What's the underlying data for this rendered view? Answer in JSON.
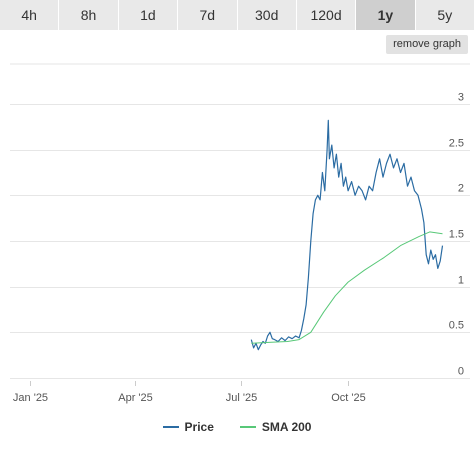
{
  "tabs": [
    {
      "label": "4h"
    },
    {
      "label": "8h"
    },
    {
      "label": "1d"
    },
    {
      "label": "7d"
    },
    {
      "label": "30d"
    },
    {
      "label": "120d"
    },
    {
      "label": "1y"
    },
    {
      "label": "5y"
    }
  ],
  "active_tab": "1y",
  "remove_graph_label": "remove graph",
  "colors": {
    "price": "#2b6ca3",
    "sma": "#58c878",
    "grid": "#e6e6e6",
    "tab_bg": "#e9e9e9",
    "tab_active_bg": "#cfcfcf"
  },
  "legend": [
    {
      "name": "Price",
      "color": "#2b6ca3"
    },
    {
      "name": "SMA 200",
      "color": "#58c878"
    }
  ],
  "chart_data": {
    "type": "line",
    "title": "",
    "xlabel": "",
    "ylabel": "",
    "ylim": [
      0,
      3
    ],
    "xlim": [
      "2024-12-15",
      "2025-12-24"
    ],
    "y_ticks": [
      "0",
      "0.5",
      "1",
      "1.5",
      "2",
      "2.5",
      "3"
    ],
    "x_ticks": [
      {
        "label": "Jan '25",
        "date": "2025-01-01"
      },
      {
        "label": "Apr '25",
        "date": "2025-04-01"
      },
      {
        "label": "Jul '25",
        "date": "2025-07-01"
      },
      {
        "label": "Oct '25",
        "date": "2025-10-01"
      }
    ],
    "grid": true,
    "legend_position": "bottom",
    "series": [
      {
        "name": "Price",
        "color": "#2b6ca3",
        "points": [
          [
            "2025-07-10",
            0.42
          ],
          [
            "2025-07-12",
            0.33
          ],
          [
            "2025-07-14",
            0.38
          ],
          [
            "2025-07-16",
            0.31
          ],
          [
            "2025-07-18",
            0.36
          ],
          [
            "2025-07-20",
            0.4
          ],
          [
            "2025-07-22",
            0.38
          ],
          [
            "2025-07-24",
            0.46
          ],
          [
            "2025-07-26",
            0.5
          ],
          [
            "2025-07-28",
            0.43
          ],
          [
            "2025-07-30",
            0.42
          ],
          [
            "2025-08-02",
            0.4
          ],
          [
            "2025-08-05",
            0.44
          ],
          [
            "2025-08-08",
            0.41
          ],
          [
            "2025-08-11",
            0.45
          ],
          [
            "2025-08-14",
            0.43
          ],
          [
            "2025-08-17",
            0.46
          ],
          [
            "2025-08-20",
            0.44
          ],
          [
            "2025-08-22",
            0.52
          ],
          [
            "2025-08-24",
            0.65
          ],
          [
            "2025-08-26",
            0.8
          ],
          [
            "2025-08-28",
            1.1
          ],
          [
            "2025-08-30",
            1.5
          ],
          [
            "2025-09-01",
            1.8
          ],
          [
            "2025-09-03",
            1.95
          ],
          [
            "2025-09-05",
            2.0
          ],
          [
            "2025-09-07",
            1.95
          ],
          [
            "2025-09-09",
            2.25
          ],
          [
            "2025-09-11",
            2.05
          ],
          [
            "2025-09-13",
            2.5
          ],
          [
            "2025-09-14",
            2.82
          ],
          [
            "2025-09-15",
            2.4
          ],
          [
            "2025-09-17",
            2.55
          ],
          [
            "2025-09-19",
            2.3
          ],
          [
            "2025-09-21",
            2.45
          ],
          [
            "2025-09-23",
            2.2
          ],
          [
            "2025-09-25",
            2.35
          ],
          [
            "2025-09-27",
            2.1
          ],
          [
            "2025-09-29",
            2.2
          ],
          [
            "2025-10-01",
            2.05
          ],
          [
            "2025-10-04",
            2.15
          ],
          [
            "2025-10-07",
            2.0
          ],
          [
            "2025-10-10",
            2.1
          ],
          [
            "2025-10-13",
            2.05
          ],
          [
            "2025-10-16",
            1.95
          ],
          [
            "2025-10-19",
            2.1
          ],
          [
            "2025-10-22",
            2.05
          ],
          [
            "2025-10-25",
            2.25
          ],
          [
            "2025-10-28",
            2.4
          ],
          [
            "2025-10-31",
            2.2
          ],
          [
            "2025-11-03",
            2.35
          ],
          [
            "2025-11-06",
            2.45
          ],
          [
            "2025-11-09",
            2.3
          ],
          [
            "2025-11-12",
            2.4
          ],
          [
            "2025-11-15",
            2.25
          ],
          [
            "2025-11-18",
            2.35
          ],
          [
            "2025-11-21",
            2.1
          ],
          [
            "2025-11-24",
            2.2
          ],
          [
            "2025-11-27",
            2.05
          ],
          [
            "2025-11-30",
            2.0
          ],
          [
            "2025-12-03",
            1.85
          ],
          [
            "2025-12-05",
            1.7
          ],
          [
            "2025-12-07",
            1.35
          ],
          [
            "2025-12-09",
            1.25
          ],
          [
            "2025-12-11",
            1.4
          ],
          [
            "2025-12-13",
            1.3
          ],
          [
            "2025-12-15",
            1.35
          ],
          [
            "2025-12-17",
            1.2
          ],
          [
            "2025-12-19",
            1.28
          ],
          [
            "2025-12-21",
            1.45
          ]
        ]
      },
      {
        "name": "SMA 200",
        "color": "#58c878",
        "points": [
          [
            "2025-07-10",
            0.38
          ],
          [
            "2025-07-25",
            0.39
          ],
          [
            "2025-08-10",
            0.4
          ],
          [
            "2025-08-20",
            0.42
          ],
          [
            "2025-08-30",
            0.5
          ],
          [
            "2025-09-10",
            0.72
          ],
          [
            "2025-09-20",
            0.9
          ],
          [
            "2025-10-01",
            1.05
          ],
          [
            "2025-10-15",
            1.18
          ],
          [
            "2025-11-01",
            1.32
          ],
          [
            "2025-11-15",
            1.45
          ],
          [
            "2025-12-01",
            1.55
          ],
          [
            "2025-12-10",
            1.6
          ],
          [
            "2025-12-21",
            1.58
          ]
        ]
      }
    ]
  }
}
